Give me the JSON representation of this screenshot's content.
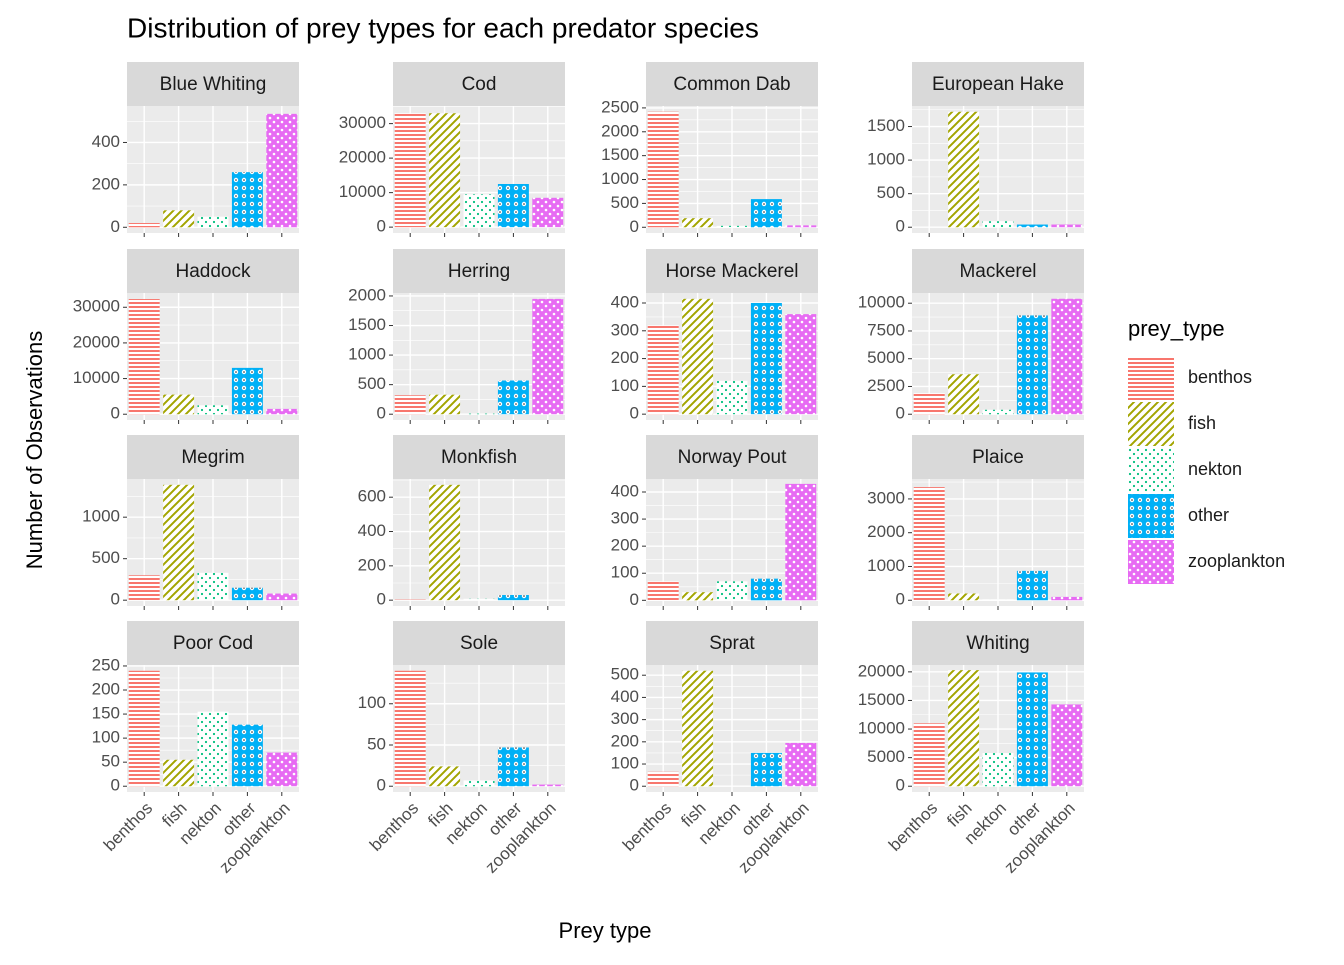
{
  "title": "Distribution of prey types for each predator species",
  "xlabel": "Prey type",
  "ylabel": "Number of Observations",
  "legend_title": "prey_type",
  "categories": [
    "benthos",
    "fish",
    "nekton",
    "other",
    "zooplankton"
  ],
  "colors": [
    "#F8766D",
    "#A3A500",
    "#00BF7D",
    "#00B0F6",
    "#E76BF3"
  ],
  "chart_data": [
    {
      "type": "bar",
      "title": "Blue Whiting",
      "values": [
        20,
        80,
        50,
        260,
        535
      ],
      "ylim": [
        -27,
        572
      ],
      "yticks": [
        0,
        200,
        400
      ]
    },
    {
      "type": "bar",
      "title": "Cod",
      "values": [
        33000,
        33000,
        9500,
        12500,
        8500
      ],
      "ylim": [
        -1700,
        35100
      ],
      "yticks": [
        0,
        10000,
        20000,
        30000
      ]
    },
    {
      "type": "bar",
      "title": "Common Dab",
      "values": [
        2420,
        190,
        30,
        590,
        40
      ],
      "ylim": [
        -120,
        2540
      ],
      "yticks": [
        0,
        500,
        1000,
        1500,
        2000,
        2500
      ]
    },
    {
      "type": "bar",
      "title": "European Hake",
      "values": [
        0,
        1720,
        90,
        40,
        40
      ],
      "ylim": [
        -86,
        1806
      ],
      "yticks": [
        0,
        500,
        1000,
        1500
      ]
    },
    {
      "type": "bar",
      "title": "Haddock",
      "values": [
        32300,
        5500,
        2500,
        13000,
        1500
      ],
      "ylim": [
        -1620,
        34000
      ],
      "yticks": [
        0,
        10000,
        20000,
        30000
      ]
    },
    {
      "type": "bar",
      "title": "Herring",
      "values": [
        320,
        330,
        10,
        570,
        1950
      ],
      "ylim": [
        -98,
        2050
      ],
      "yticks": [
        0,
        500,
        1000,
        1500,
        2000
      ]
    },
    {
      "type": "bar",
      "title": "Horse Mackerel",
      "values": [
        320,
        415,
        120,
        400,
        360
      ],
      "ylim": [
        -21,
        436
      ],
      "yticks": [
        0,
        100,
        200,
        300,
        400
      ]
    },
    {
      "type": "bar",
      "title": "Mackerel",
      "values": [
        1900,
        3600,
        400,
        8900,
        10400
      ],
      "ylim": [
        -520,
        10920
      ],
      "yticks": [
        0,
        2500,
        5000,
        7500,
        10000
      ]
    },
    {
      "type": "bar",
      "title": "Megrim",
      "values": [
        300,
        1390,
        330,
        150,
        80
      ],
      "ylim": [
        -70,
        1460
      ],
      "yticks": [
        0,
        500,
        1000
      ]
    },
    {
      "type": "bar",
      "title": "Monkfish",
      "values": [
        3,
        672,
        8,
        30,
        0
      ],
      "ylim": [
        -34,
        706
      ],
      "yticks": [
        0,
        200,
        400,
        600
      ]
    },
    {
      "type": "bar",
      "title": "Norway Pout",
      "values": [
        70,
        30,
        70,
        80,
        430
      ],
      "ylim": [
        -21,
        448
      ],
      "yticks": [
        0,
        100,
        200,
        300,
        400
      ]
    },
    {
      "type": "bar",
      "title": "Plaice",
      "values": [
        3350,
        200,
        30,
        870,
        100
      ],
      "ylim": [
        -170,
        3590
      ],
      "yticks": [
        0,
        1000,
        2000,
        3000
      ]
    },
    {
      "type": "bar",
      "title": "Poor Cod",
      "values": [
        240,
        55,
        155,
        128,
        70
      ],
      "ylim": [
        -12,
        252
      ],
      "yticks": [
        0,
        50,
        100,
        150,
        200,
        250
      ]
    },
    {
      "type": "bar",
      "title": "Sole",
      "values": [
        140,
        24,
        7,
        47,
        2
      ],
      "ylim": [
        -7,
        147
      ],
      "yticks": [
        0,
        50,
        100
      ]
    },
    {
      "type": "bar",
      "title": "Sprat",
      "values": [
        65,
        520,
        0,
        150,
        195
      ],
      "ylim": [
        -26,
        546
      ],
      "yticks": [
        0,
        100,
        200,
        300,
        400,
        500
      ]
    },
    {
      "type": "bar",
      "title": "Whiting",
      "values": [
        11000,
        20300,
        5800,
        19900,
        14300
      ],
      "ylim": [
        -1010,
        21200
      ],
      "yticks": [
        0,
        5000,
        10000,
        15000,
        20000
      ]
    }
  ]
}
